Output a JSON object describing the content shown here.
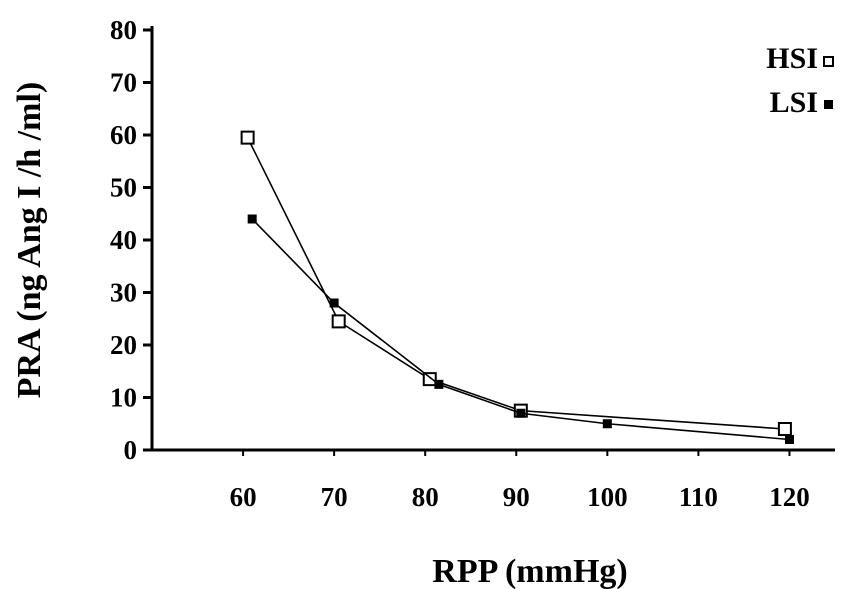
{
  "chart_data": {
    "type": "line",
    "title": "",
    "xlabel": "RPP (mmHg)",
    "ylabel": "PRA (ng Ang I /h /ml)",
    "xlim": [
      50,
      125
    ],
    "ylim": [
      0,
      80
    ],
    "xticks": [
      60,
      70,
      80,
      90,
      100,
      110,
      120
    ],
    "yticks": [
      0,
      10,
      20,
      30,
      40,
      50,
      60,
      70,
      80
    ],
    "grid": false,
    "legend_position": "top-right",
    "series": [
      {
        "name": "HSI",
        "marker": "open-square",
        "color": "#000000",
        "x": [
          60.5,
          70.5,
          80.5,
          90.5,
          119.5
        ],
        "y": [
          59.5,
          24.5,
          13.5,
          7.5,
          4.0
        ]
      },
      {
        "name": "LSI",
        "marker": "filled-square",
        "color": "#000000",
        "x": [
          61,
          70,
          81.5,
          90.5,
          100,
          120
        ],
        "y": [
          44,
          28,
          12.5,
          7,
          5,
          2
        ]
      }
    ]
  }
}
